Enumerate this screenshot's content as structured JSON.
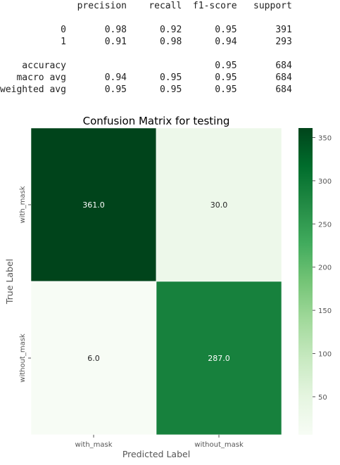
{
  "report": {
    "lines": [
      "              precision    recall  f1-score   support",
      "",
      "           0       0.98      0.92      0.95       391",
      "           1       0.91      0.98      0.94       293",
      "",
      "    accuracy                           0.95       684",
      "   macro avg       0.94      0.95      0.95       684",
      "weighted avg       0.95      0.95      0.95       684"
    ]
  },
  "chart_data": {
    "type": "heatmap",
    "title": "Confusion Matrix for testing",
    "xlabel": "Predicted Label",
    "ylabel": "True Label",
    "x_categories": [
      "with_mask",
      "without_mask"
    ],
    "y_categories": [
      "with_mask",
      "without_mask"
    ],
    "values": [
      [
        361.0,
        30.0
      ],
      [
        6.0,
        287.0
      ]
    ],
    "cell_labels": [
      [
        "361.0",
        "30.0"
      ],
      [
        "6.0",
        "287.0"
      ]
    ],
    "colormap": "Greens",
    "colorbar": {
      "range": [
        6,
        361
      ],
      "ticks": [
        50,
        100,
        150,
        200,
        250,
        300,
        350
      ],
      "tick_labels": [
        "50",
        "100",
        "150",
        "200",
        "250",
        "300",
        "350"
      ]
    },
    "colors": {
      "low": "#f7fcf5",
      "high": "#00441b",
      "light_text": "#ffffff",
      "dark_text": "#262626",
      "label_text": "#555555"
    }
  }
}
